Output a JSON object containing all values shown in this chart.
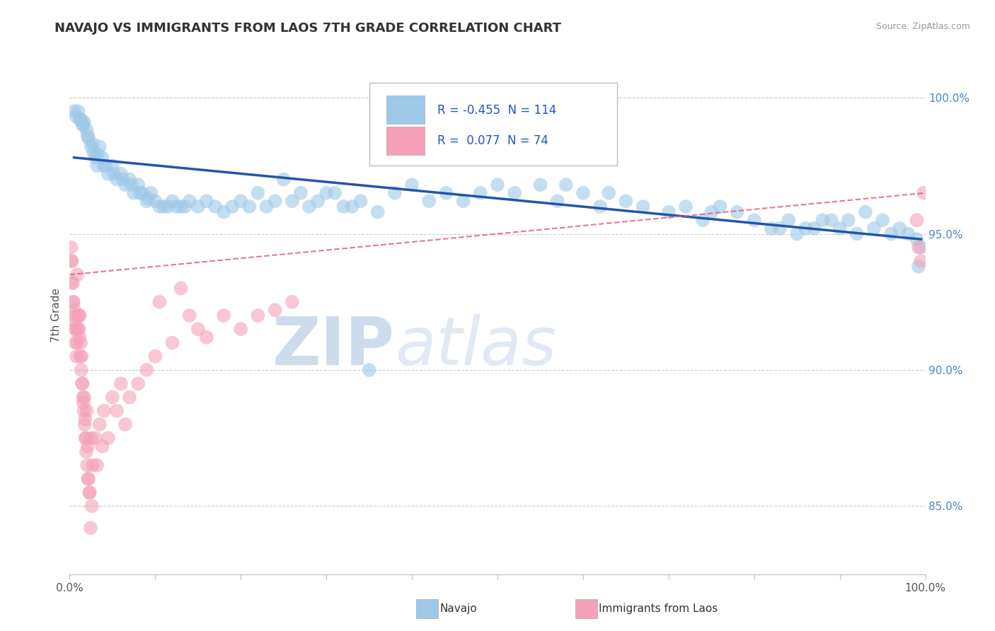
{
  "title": "NAVAJO VS IMMIGRANTS FROM LAOS 7TH GRADE CORRELATION CHART",
  "source": "Source: ZipAtlas.com",
  "ylabel": "7th Grade",
  "ylabel_right_ticks": [
    85.0,
    90.0,
    95.0,
    100.0
  ],
  "y_min": 82.5,
  "y_max": 101.5,
  "x_min": 0.0,
  "x_max": 100.0,
  "legend_navajo_R": "-0.455",
  "legend_navajo_N": "114",
  "legend_laos_R": "0.077",
  "legend_laos_N": "74",
  "navajo_color": "#9EC8E8",
  "laos_color": "#F5A0B8",
  "navajo_line_color": "#2255AA",
  "laos_line_color": "#E06080",
  "watermark_zip": "ZIP",
  "watermark_atlas": "atlas",
  "navajo_trend": [
    0.5,
    97.8,
    99.5,
    94.8
  ],
  "laos_trend": [
    0.0,
    93.5,
    100.0,
    96.5
  ],
  "navajo_points": [
    [
      0.5,
      99.5
    ],
    [
      0.8,
      99.3
    ],
    [
      1.0,
      99.5
    ],
    [
      1.2,
      99.2
    ],
    [
      1.5,
      99.0
    ],
    [
      1.7,
      99.1
    ],
    [
      2.0,
      98.8
    ],
    [
      2.2,
      98.5
    ],
    [
      2.5,
      98.2
    ],
    [
      2.8,
      98.0
    ],
    [
      3.0,
      97.8
    ],
    [
      3.2,
      97.5
    ],
    [
      3.5,
      98.2
    ],
    [
      3.8,
      97.8
    ],
    [
      4.0,
      97.5
    ],
    [
      4.5,
      97.2
    ],
    [
      5.0,
      97.5
    ],
    [
      5.5,
      97.0
    ],
    [
      6.0,
      97.2
    ],
    [
      6.5,
      96.8
    ],
    [
      7.0,
      97.0
    ],
    [
      7.5,
      96.5
    ],
    [
      8.0,
      96.8
    ],
    [
      8.5,
      96.5
    ],
    [
      9.0,
      96.2
    ],
    [
      9.5,
      96.5
    ],
    [
      10.0,
      96.2
    ],
    [
      11.0,
      96.0
    ],
    [
      12.0,
      96.2
    ],
    [
      13.0,
      96.0
    ],
    [
      14.0,
      96.2
    ],
    [
      15.0,
      96.0
    ],
    [
      16.0,
      96.2
    ],
    [
      17.0,
      96.0
    ],
    [
      18.0,
      95.8
    ],
    [
      19.0,
      96.0
    ],
    [
      20.0,
      96.2
    ],
    [
      21.0,
      96.0
    ],
    [
      22.0,
      96.5
    ],
    [
      23.0,
      96.0
    ],
    [
      24.0,
      96.2
    ],
    [
      25.0,
      97.0
    ],
    [
      26.0,
      96.2
    ],
    [
      27.0,
      96.5
    ],
    [
      28.0,
      96.0
    ],
    [
      30.0,
      96.5
    ],
    [
      32.0,
      96.0
    ],
    [
      34.0,
      96.2
    ],
    [
      36.0,
      95.8
    ],
    [
      38.0,
      96.5
    ],
    [
      40.0,
      96.8
    ],
    [
      42.0,
      96.2
    ],
    [
      44.0,
      96.5
    ],
    [
      46.0,
      96.2
    ],
    [
      48.0,
      96.5
    ],
    [
      50.0,
      96.8
    ],
    [
      52.0,
      96.5
    ],
    [
      55.0,
      96.8
    ],
    [
      57.0,
      96.2
    ],
    [
      58.0,
      96.8
    ],
    [
      60.0,
      96.5
    ],
    [
      62.0,
      96.0
    ],
    [
      65.0,
      96.2
    ],
    [
      67.0,
      96.0
    ],
    [
      70.0,
      95.8
    ],
    [
      72.0,
      96.0
    ],
    [
      74.0,
      95.5
    ],
    [
      76.0,
      96.0
    ],
    [
      78.0,
      95.8
    ],
    [
      80.0,
      95.5
    ],
    [
      82.0,
      95.2
    ],
    [
      84.0,
      95.5
    ],
    [
      86.0,
      95.2
    ],
    [
      88.0,
      95.5
    ],
    [
      90.0,
      95.2
    ],
    [
      91.0,
      95.5
    ],
    [
      92.0,
      95.0
    ],
    [
      93.0,
      95.8
    ],
    [
      94.0,
      95.2
    ],
    [
      95.0,
      95.5
    ],
    [
      96.0,
      95.0
    ],
    [
      97.0,
      95.2
    ],
    [
      98.0,
      95.0
    ],
    [
      99.0,
      94.8
    ],
    [
      99.5,
      94.5
    ],
    [
      1.3,
      99.2
    ],
    [
      1.6,
      99.0
    ],
    [
      2.1,
      98.6
    ],
    [
      2.7,
      98.3
    ],
    [
      3.3,
      97.9
    ],
    [
      4.2,
      97.5
    ],
    [
      5.2,
      97.2
    ],
    [
      6.2,
      97.0
    ],
    [
      7.2,
      96.8
    ],
    [
      8.2,
      96.5
    ],
    [
      9.2,
      96.3
    ],
    [
      10.5,
      96.0
    ],
    [
      11.5,
      96.0
    ],
    [
      12.5,
      96.0
    ],
    [
      13.5,
      96.0
    ],
    [
      29.0,
      96.2
    ],
    [
      31.0,
      96.5
    ],
    [
      33.0,
      96.0
    ],
    [
      63.0,
      96.5
    ],
    [
      75.0,
      95.8
    ],
    [
      83.0,
      95.2
    ],
    [
      85.0,
      95.0
    ],
    [
      87.0,
      95.2
    ],
    [
      89.0,
      95.5
    ],
    [
      99.2,
      93.8
    ],
    [
      35.0,
      90.0
    ]
  ],
  "laos_points": [
    [
      0.2,
      94.0
    ],
    [
      0.3,
      93.2
    ],
    [
      0.4,
      92.5
    ],
    [
      0.5,
      92.0
    ],
    [
      0.6,
      91.5
    ],
    [
      0.7,
      91.0
    ],
    [
      0.8,
      90.5
    ],
    [
      0.9,
      93.5
    ],
    [
      1.0,
      92.0
    ],
    [
      1.1,
      91.5
    ],
    [
      1.2,
      92.0
    ],
    [
      1.3,
      91.0
    ],
    [
      1.4,
      90.5
    ],
    [
      1.5,
      89.5
    ],
    [
      1.6,
      88.8
    ],
    [
      1.7,
      89.0
    ],
    [
      1.8,
      88.2
    ],
    [
      1.9,
      87.5
    ],
    [
      2.0,
      88.5
    ],
    [
      2.1,
      87.2
    ],
    [
      2.2,
      86.0
    ],
    [
      2.3,
      85.5
    ],
    [
      2.5,
      87.5
    ],
    [
      2.7,
      86.5
    ],
    [
      3.0,
      87.5
    ],
    [
      3.2,
      86.5
    ],
    [
      3.5,
      88.0
    ],
    [
      3.8,
      87.2
    ],
    [
      4.0,
      88.5
    ],
    [
      4.5,
      87.5
    ],
    [
      5.0,
      89.0
    ],
    [
      5.5,
      88.5
    ],
    [
      6.0,
      89.5
    ],
    [
      6.5,
      88.0
    ],
    [
      7.0,
      89.0
    ],
    [
      8.0,
      89.5
    ],
    [
      9.0,
      90.0
    ],
    [
      10.0,
      90.5
    ],
    [
      12.0,
      91.0
    ],
    [
      14.0,
      92.0
    ],
    [
      15.0,
      91.5
    ],
    [
      16.0,
      91.2
    ],
    [
      18.0,
      92.0
    ],
    [
      20.0,
      91.5
    ],
    [
      22.0,
      92.0
    ],
    [
      0.15,
      94.5
    ],
    [
      0.25,
      94.0
    ],
    [
      0.35,
      93.2
    ],
    [
      0.45,
      92.5
    ],
    [
      0.55,
      92.2
    ],
    [
      0.65,
      91.8
    ],
    [
      0.75,
      91.5
    ],
    [
      0.85,
      91.0
    ],
    [
      0.95,
      91.5
    ],
    [
      1.05,
      92.0
    ],
    [
      1.15,
      91.2
    ],
    [
      1.25,
      90.5
    ],
    [
      1.35,
      90.0
    ],
    [
      1.45,
      89.5
    ],
    [
      1.55,
      89.0
    ],
    [
      1.65,
      88.5
    ],
    [
      1.75,
      88.0
    ],
    [
      1.85,
      87.5
    ],
    [
      1.95,
      87.0
    ],
    [
      2.05,
      86.5
    ],
    [
      2.15,
      86.0
    ],
    [
      2.35,
      85.5
    ],
    [
      2.45,
      84.2
    ],
    [
      2.6,
      85.0
    ],
    [
      99.0,
      95.5
    ],
    [
      99.2,
      94.5
    ],
    [
      99.5,
      94.0
    ],
    [
      99.8,
      96.5
    ],
    [
      24.0,
      92.2
    ],
    [
      26.0,
      92.5
    ],
    [
      10.5,
      92.5
    ],
    [
      13.0,
      93.0
    ]
  ]
}
